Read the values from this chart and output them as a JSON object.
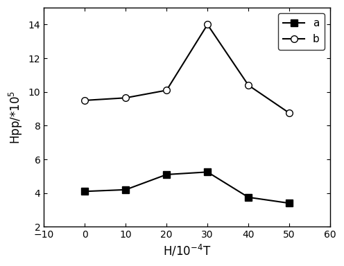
{
  "x": [
    0,
    10,
    20,
    30,
    40,
    50
  ],
  "series_a": [
    4.1,
    4.2,
    5.1,
    5.25,
    3.75,
    3.4
  ],
  "series_b": [
    9.5,
    9.65,
    10.1,
    14.0,
    10.4,
    8.75
  ],
  "xlabel": "H/10$^{-4}$T",
  "ylabel": "Hpp/*10$^{5}$",
  "xlim": [
    -10,
    60
  ],
  "ylim": [
    2,
    15
  ],
  "xticks": [
    -10,
    0,
    10,
    20,
    30,
    40,
    50,
    60
  ],
  "yticks": [
    2,
    4,
    6,
    8,
    10,
    12,
    14
  ],
  "legend_a": "a",
  "legend_b": "b",
  "line_color": "#000000",
  "bg_color": "#ffffff",
  "marker_size": 7,
  "line_width": 1.5,
  "label_fontsize": 12,
  "tick_fontsize": 10
}
